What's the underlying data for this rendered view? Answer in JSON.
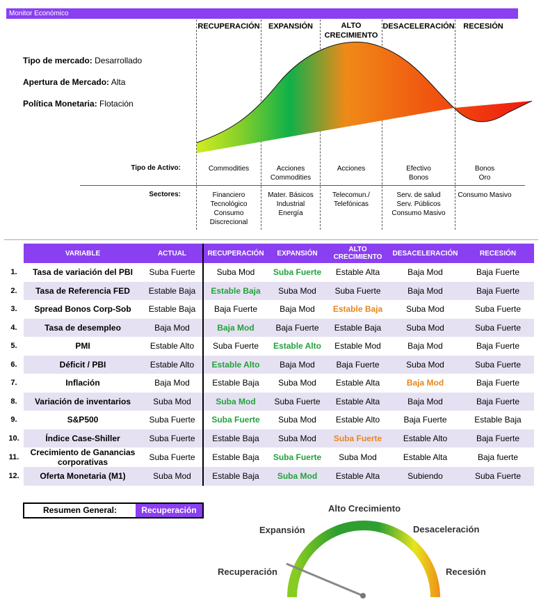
{
  "header": {
    "title": "Monitor Económico"
  },
  "phases": [
    "RECUPERACIÓN",
    "EXPANSIÓN",
    "ALTO CRECIMIENTO",
    "DESACELERACIÓN",
    "RECESIÓN"
  ],
  "market": {
    "tipo_label": "Tipo de mercado:",
    "tipo_value": "Desarrollado",
    "apertura_label": "Apertura de Mercado:",
    "apertura_value": "Alta",
    "politica_label": "Política Monetaria:",
    "politica_value": "Flotación"
  },
  "asset_row": {
    "label": "Tipo de Activo:",
    "cells": [
      "Commodities",
      "Acciones\nCommodities",
      "Acciones",
      "Efectivo\nBonos",
      "Bonos\nOro"
    ]
  },
  "sector_row": {
    "label": "Sectores:",
    "cells": [
      "Financiero\nTecnológico\nConsumo\nDiscrecional",
      "Mater. Básicos\nIndustrial\nEnergía",
      "Telecomun./\nTelefónicas",
      "Serv. de salud\nServ. Públicos\nConsumo Masivo",
      "Consumo Masivo"
    ]
  },
  "table": {
    "headers": [
      "VARIABLE",
      "ACTUAL",
      "RECUPERACIÓN",
      "EXPANSIÓN",
      "ALTO CRECIMIENTO",
      "DESACELERACIÓN",
      "RECESIÓN"
    ],
    "rows": [
      {
        "num": "1.",
        "variable": "Tasa de variación del PBI",
        "actual": "Suba Fuerte",
        "vals": [
          "Suba Mod",
          "Suba Fuerte",
          "Estable Alta",
          "Baja Mod",
          "Baja Fuerte"
        ],
        "hl": [
          1,
          "green"
        ]
      },
      {
        "num": "2.",
        "variable": "Tasa de Referencia FED",
        "actual": "Estable Baja",
        "vals": [
          "Estable Baja",
          "Suba Mod",
          "Suba Fuerte",
          "Baja Mod",
          "Baja Fuerte"
        ],
        "hl": [
          0,
          "green"
        ]
      },
      {
        "num": "3.",
        "variable": "Spread Bonos Corp-Sob",
        "actual": "Estable Baja",
        "vals": [
          "Baja Fuerte",
          "Baja Mod",
          "Estable Baja",
          "Suba Mod",
          "Suba Fuerte"
        ],
        "hl": [
          2,
          "orange"
        ]
      },
      {
        "num": "4.",
        "variable": "Tasa de desempleo",
        "actual": "Baja Mod",
        "vals": [
          "Baja Mod",
          "Baja Fuerte",
          "Estable Baja",
          "Suba Mod",
          "Suba Fuerte"
        ],
        "hl": [
          0,
          "green"
        ]
      },
      {
        "num": "5.",
        "variable": "PMI",
        "actual": "Estable Alto",
        "vals": [
          "Suba Fuerte",
          "Estable Alto",
          "Estable Mod",
          "Baja Mod",
          "Baja Fuerte"
        ],
        "hl": [
          1,
          "green"
        ]
      },
      {
        "num": "6.",
        "variable": "Déficit / PBI",
        "actual": "Estable Alto",
        "vals": [
          "Estable Alto",
          "Baja Mod",
          "Baja Fuerte",
          "Suba Mod",
          "Suba Fuerte"
        ],
        "hl": [
          0,
          "green"
        ]
      },
      {
        "num": "7.",
        "variable": "Inflación",
        "actual": "Baja Mod",
        "vals": [
          "Estable Baja",
          "Suba Mod",
          "Estable Alta",
          "Baja Mod",
          "Baja Fuerte"
        ],
        "hl": [
          3,
          "orange"
        ]
      },
      {
        "num": "8.",
        "variable": "Variación de inventarios",
        "actual": "Suba Mod",
        "vals": [
          "Suba Mod",
          "Suba Fuerte",
          "Estable Alta",
          "Baja Mod",
          "Baja Fuerte"
        ],
        "hl": [
          0,
          "green"
        ]
      },
      {
        "num": "9.",
        "variable": "S&P500",
        "actual": "Suba Fuerte",
        "vals": [
          "Suba Fuerte",
          "Suba Mod",
          "Estable Alto",
          "Baja Fuerte",
          "Estable Baja"
        ],
        "hl": [
          0,
          "green"
        ]
      },
      {
        "num": "10.",
        "variable": "Índice Case-Shiller",
        "actual": "Suba Fuerte",
        "vals": [
          "Estable Baja",
          "Suba Mod",
          "Suba Fuerte",
          "Estable Alto",
          "Baja Fuerte"
        ],
        "hl": [
          2,
          "orange"
        ]
      },
      {
        "num": "11.",
        "variable": "Crecimiento de Ganancias corporativas",
        "actual": "Suba Fuerte",
        "vals": [
          "Estable Baja",
          "Suba Fuerte",
          "Suba Mod",
          "Estable Alta",
          "Baja fuerte"
        ],
        "hl": [
          1,
          "green"
        ]
      },
      {
        "num": "12.",
        "variable": "Oferta Monetaria (M1)",
        "actual": "Suba Mod",
        "vals": [
          "Estable Baja",
          "Suba Mod",
          "Estable Alta",
          "Subiendo",
          "Suba Fuerte"
        ],
        "hl": [
          1,
          "green"
        ]
      }
    ]
  },
  "summary": {
    "label": "Resumen General:",
    "value": "Recuperación"
  },
  "gauge": {
    "labels": [
      "Recuperación",
      "Expansión",
      "Alto Crecimiento",
      "Desaceleración",
      "Recesión"
    ],
    "needle": "Recuperación"
  },
  "colors": {
    "accent": "#8a3ff0",
    "green_text": "#22a23b",
    "orange_text": "#e8861d"
  }
}
